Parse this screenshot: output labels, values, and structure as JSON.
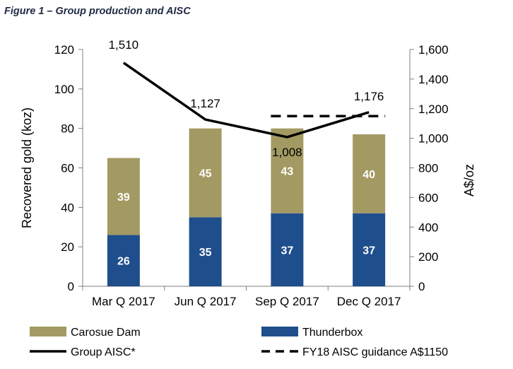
{
  "figure": {
    "title": "Figure 1 – Group production and AISC"
  },
  "chart_data": {
    "type": "bar",
    "stacked": true,
    "categories": [
      "Mar Q 2017",
      "Jun Q 2017",
      "Sep Q 2017",
      "Dec Q 2017"
    ],
    "series": [
      {
        "name": "Thunderbox",
        "values": [
          26,
          35,
          37,
          37
        ],
        "color": "#1f4e8c",
        "axis": "left"
      },
      {
        "name": "Carosue Dam",
        "values": [
          39,
          45,
          43,
          40
        ],
        "color": "#a39a63",
        "axis": "left"
      }
    ],
    "lines": [
      {
        "name": "Group AISC*",
        "values": [
          1510,
          1127,
          1008,
          1176
        ],
        "labels": [
          "1,510",
          "1,127",
          "1,008",
          "1,176"
        ],
        "color": "#000000",
        "axis": "right"
      },
      {
        "name": "FY18 AISC guidance A$1150",
        "x_range": [
          "Sep Q 2017",
          "Dec Q 2017"
        ],
        "value": 1150,
        "style": "dashed",
        "color": "#000000",
        "axis": "right"
      }
    ],
    "ylabel": "Recovered gold (koz)",
    "y2label": "A$/oz",
    "ylim": [
      0,
      120
    ],
    "y2lim": [
      0,
      1600
    ],
    "yticks": [
      "0",
      "20",
      "40",
      "60",
      "80",
      "100",
      "120"
    ],
    "y2ticks": [
      "0",
      "200",
      "400",
      "600",
      "800",
      "1,000",
      "1,200",
      "1,400",
      "1,600"
    ],
    "legend": [
      "Carosue Dam",
      "Thunderbox",
      "Group AISC*",
      "FY18 AISC guidance A$1150"
    ],
    "legend_position": "bottom",
    "grid": false
  }
}
